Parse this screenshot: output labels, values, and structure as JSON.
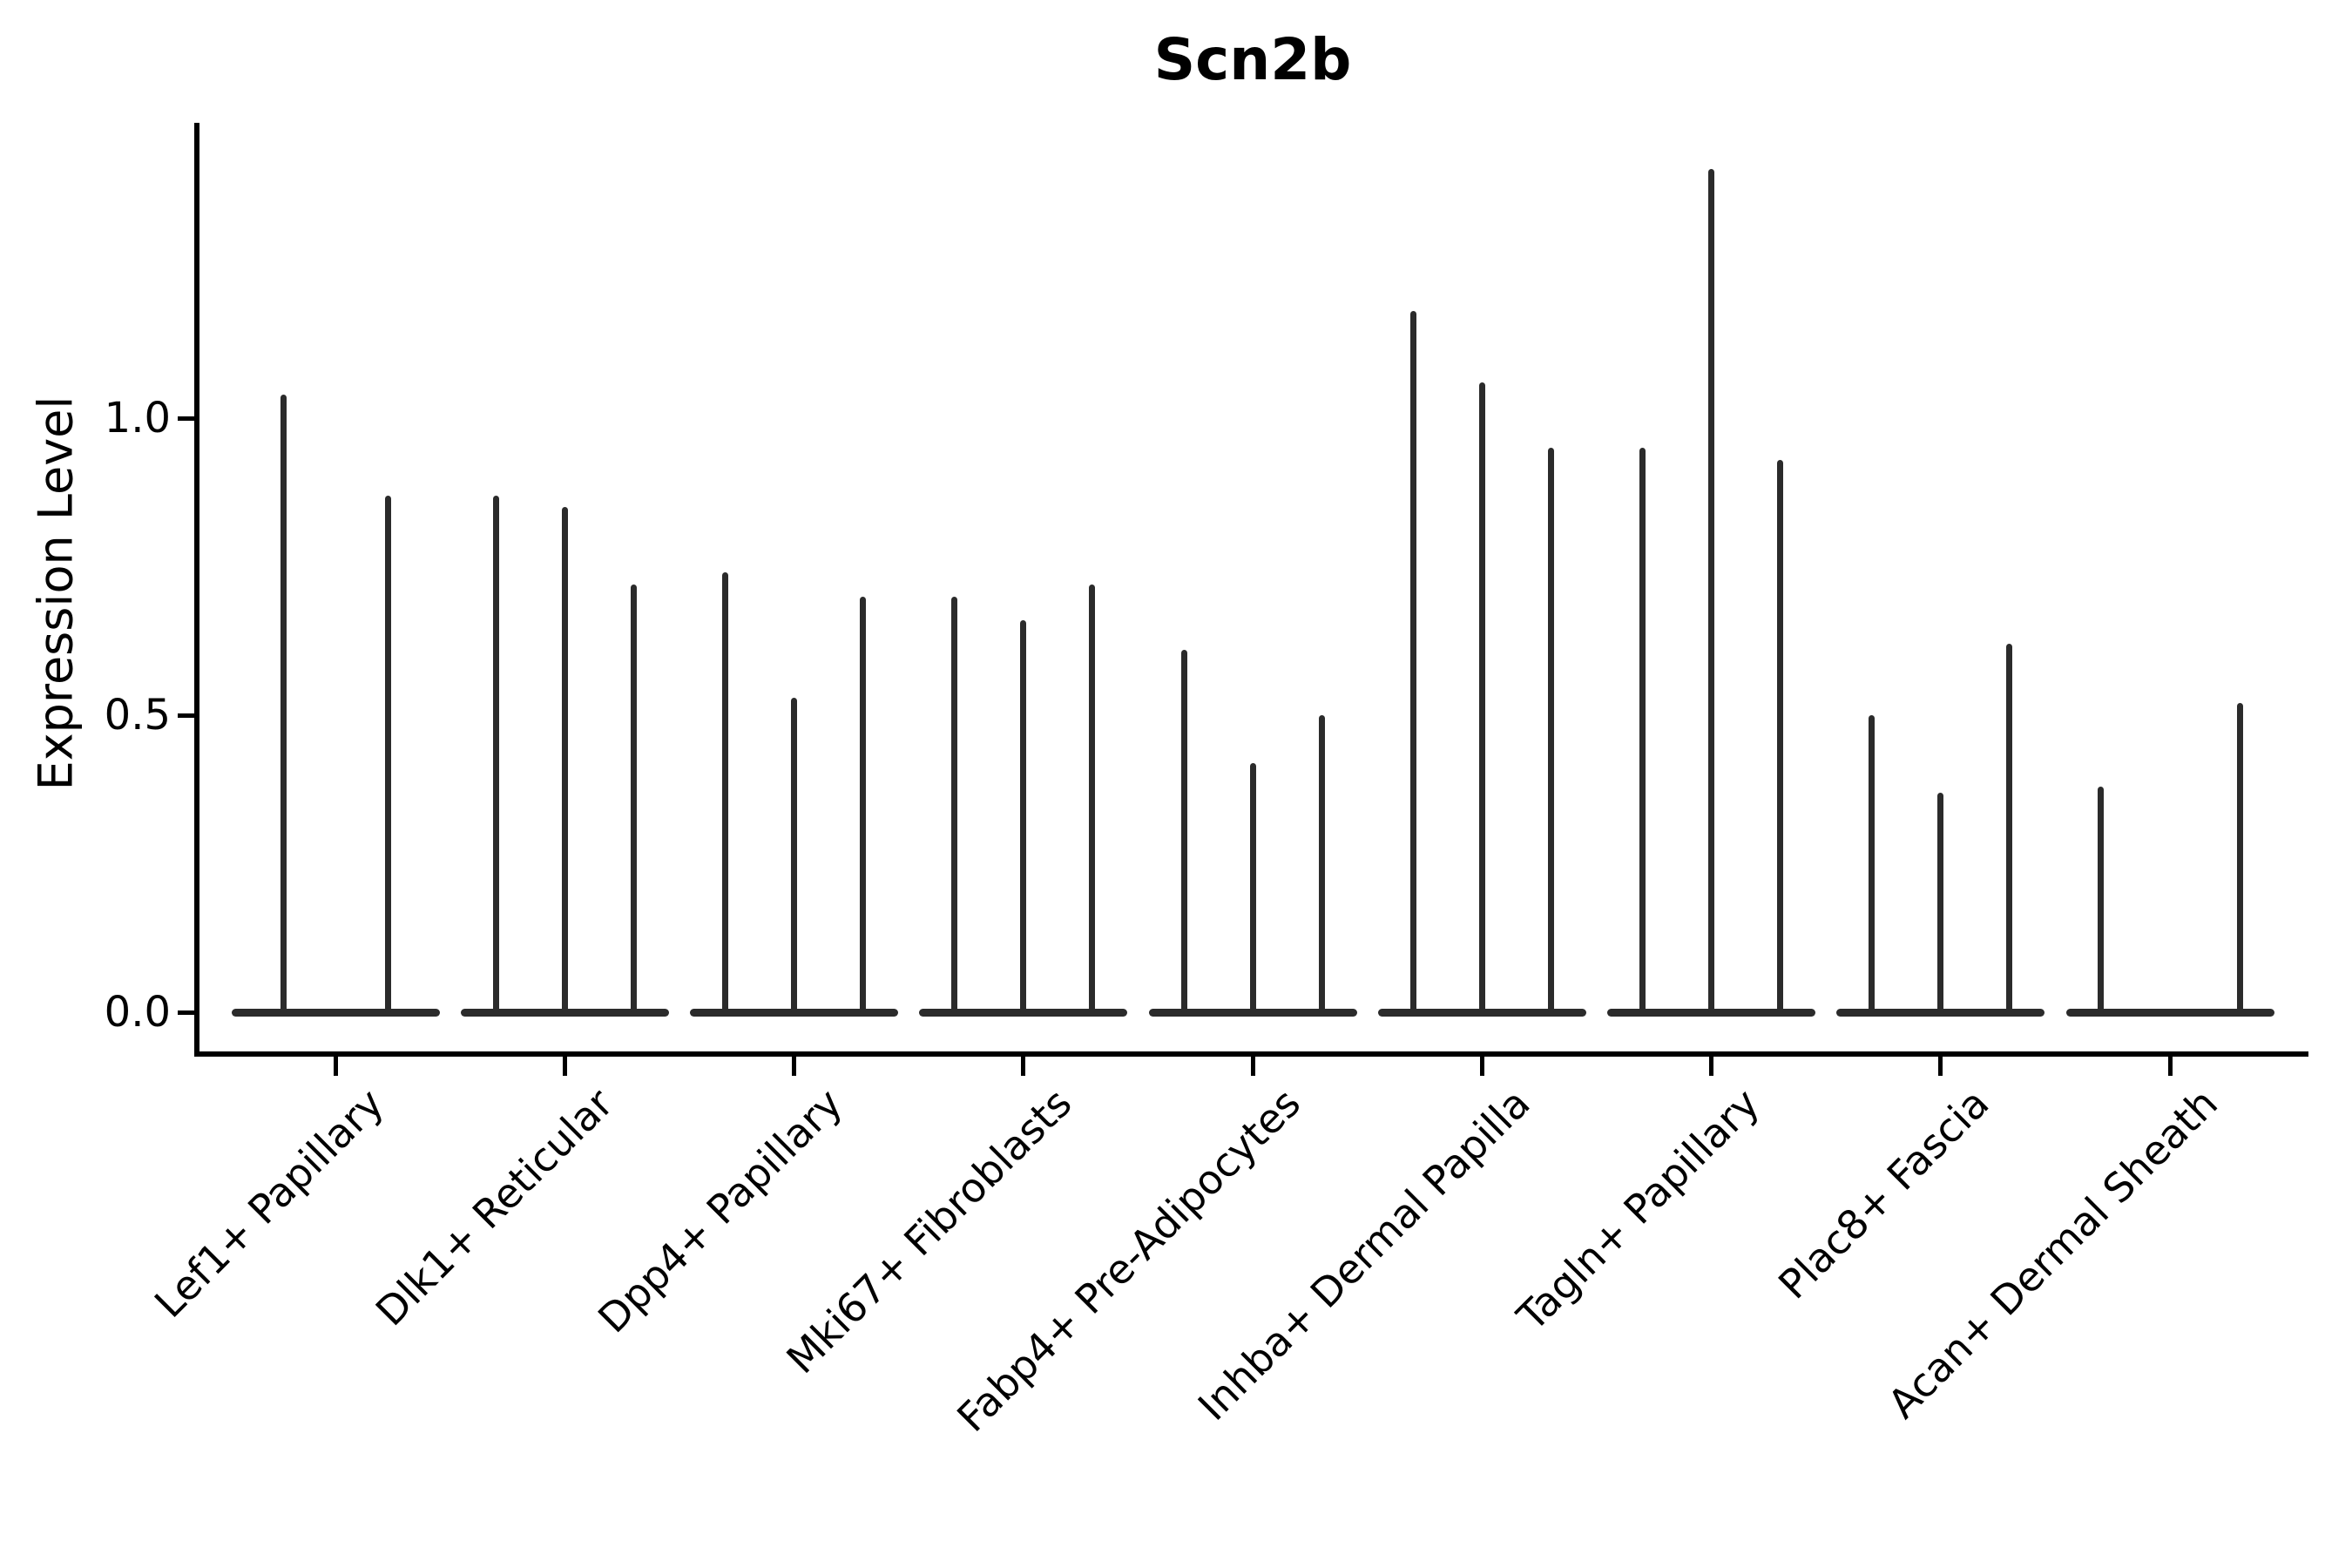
{
  "title": "Scn2b",
  "ylabel": "Expression Level",
  "chart_data": {
    "type": "violin",
    "title": "Scn2b",
    "xlabel": "",
    "ylabel": "Expression Level",
    "ylim": [
      0,
      1.5
    ],
    "y_ticks": [
      0.0,
      0.5,
      1.0
    ],
    "y_tick_labels": [
      "0.0",
      "0.5",
      "1.0"
    ],
    "grid": "off",
    "legend": "none",
    "categories": [
      "Lef1+ Papillary",
      "Dlk1+ Reticular",
      "Dpp4+ Papillary",
      "Mki67+ Fibroblasts",
      "Fabp4+ Pre-Adipocytes",
      "Inhba+ Dermal Papilla",
      "Tagln+ Papillary",
      "Plac8+ Fascia",
      "Acan+ Dermal Sheath"
    ],
    "groups": [
      {
        "label": "Lef1+ Papillary",
        "violins": [
          {
            "offset": -60,
            "max": 1.04
          },
          {
            "offset": 60,
            "max": 0.87
          }
        ]
      },
      {
        "label": "Dlk1+ Reticular",
        "violins": [
          {
            "offset": -79,
            "max": 0.87
          },
          {
            "offset": 0,
            "max": 0.85
          },
          {
            "offset": 79,
            "max": 0.72
          }
        ]
      },
      {
        "label": "Dpp4+ Papillary",
        "violins": [
          {
            "offset": -79,
            "max": 0.74
          },
          {
            "offset": 0,
            "max": 0.53
          },
          {
            "offset": 79,
            "max": 0.7
          }
        ]
      },
      {
        "label": "Mki67+ Fibroblasts",
        "violins": [
          {
            "offset": -79,
            "max": 0.7
          },
          {
            "offset": 0,
            "max": 0.66
          },
          {
            "offset": 79,
            "max": 0.72
          }
        ]
      },
      {
        "label": "Fabp4+ Pre-Adipocytes",
        "violins": [
          {
            "offset": -79,
            "max": 0.61
          },
          {
            "offset": 0,
            "max": 0.42
          },
          {
            "offset": 79,
            "max": 0.5
          }
        ]
      },
      {
        "label": "Inhba+ Dermal Papilla",
        "violins": [
          {
            "offset": -79,
            "max": 1.18
          },
          {
            "offset": 0,
            "max": 1.06
          },
          {
            "offset": 79,
            "max": 0.95
          }
        ]
      },
      {
        "label": "Tagln+ Papillary",
        "violins": [
          {
            "offset": -79,
            "max": 0.95
          },
          {
            "offset": 0,
            "max": 1.42
          },
          {
            "offset": 79,
            "max": 0.93
          }
        ]
      },
      {
        "label": "Plac8+ Fascia",
        "violins": [
          {
            "offset": -79,
            "max": 0.5
          },
          {
            "offset": 0,
            "max": 0.37
          },
          {
            "offset": 79,
            "max": 0.62
          }
        ]
      },
      {
        "label": "Acan+ Dermal Sheath",
        "violins": [
          {
            "offset": -80,
            "max": 0.38
          },
          {
            "offset": 80,
            "max": 0.52
          }
        ]
      }
    ],
    "baseline_value": 0.0,
    "colors": {
      "violin": "#2b2b2b",
      "axis": "#000000",
      "text": "#000000",
      "background": "#ffffff"
    }
  }
}
